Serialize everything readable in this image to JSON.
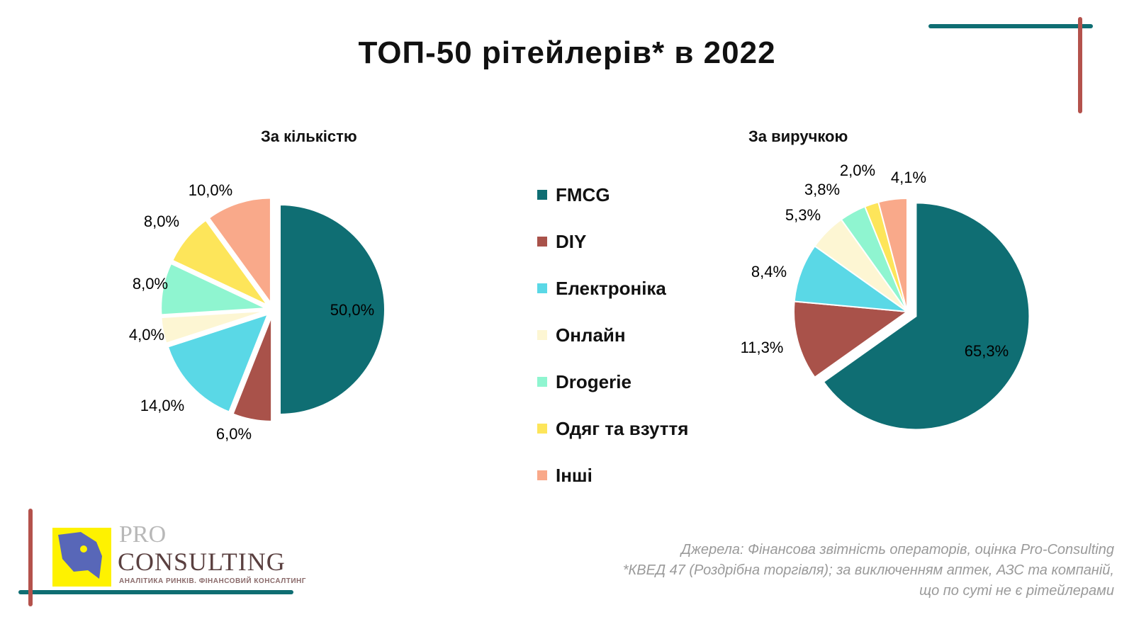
{
  "title": "ТОП-50 рітейлерів* в 2022",
  "chart_data": [
    {
      "type": "pie",
      "title": "За кількістю",
      "categories": [
        "FMCG",
        "DIY",
        "Електроніка",
        "Онлайн",
        "Drogerie",
        "Одяг та взуття",
        "Інші"
      ],
      "values": [
        50.0,
        6.0,
        14.0,
        4.0,
        8.0,
        8.0,
        10.0
      ],
      "labels": [
        "50,0%",
        "6,0%",
        "14,0%",
        "4,0%",
        "8,0%",
        "8,0%",
        "10,0%"
      ]
    },
    {
      "type": "pie",
      "title": "За виручкою",
      "categories": [
        "FMCG",
        "DIY",
        "Електроніка",
        "Онлайн",
        "Drogerie",
        "Одяг та взуття",
        "Інші"
      ],
      "values": [
        65.3,
        11.3,
        8.4,
        5.3,
        3.8,
        2.0,
        4.1
      ],
      "labels": [
        "65,3%",
        "11,3%",
        "8,4%",
        "5,3%",
        "3,8%",
        "2,0%",
        "4,1%"
      ]
    }
  ],
  "legend": [
    {
      "label": "FMCG",
      "color": "#0f6e73"
    },
    {
      "label": "DIY",
      "color": "#a9524a"
    },
    {
      "label": "Електроніка",
      "color": "#5ad8e6"
    },
    {
      "label": "Онлайн",
      "color": "#fdf6d3"
    },
    {
      "label": "Drogerie",
      "color": "#8ff5d0"
    },
    {
      "label": "Одяг та взуття",
      "color": "#fde55a"
    },
    {
      "label": "Інші",
      "color": "#f9a98a"
    }
  ],
  "footer": {
    "source": "Джерела: Фінансова звітність операторів, оцінка Pro-Consulting",
    "note1": "*КВЕД 47 (Роздрібна торгівля); за виключенням аптек, АЗС та компаній,",
    "note2": "що по суті не є рітейлерами"
  },
  "logo": {
    "pro": "PRO",
    "consulting": "CONSULTING",
    "tagline": "АНАЛІТИКА РИНКІВ. ФІНАНСОВИЙ КОНСАЛТИНГ"
  }
}
